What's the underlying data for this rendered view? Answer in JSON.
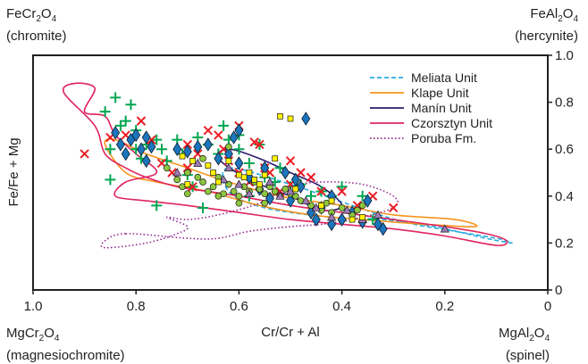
{
  "corners": {
    "top_left": {
      "formula": "FeCr",
      "sub1": "2",
      "rest": "O",
      "sub2": "4",
      "name": "(chromite)"
    },
    "top_right": {
      "formula": "FeAl",
      "sub1": "2",
      "rest": "O",
      "sub2": "4",
      "name": "(hercynite)"
    },
    "bottom_left": {
      "formula": "MgCr",
      "sub1": "2",
      "rest": "O",
      "sub2": "4",
      "name": "(magnesiochromite)"
    },
    "bottom_right": {
      "formula": "MgAl",
      "sub1": "2",
      "rest": "O",
      "sub2": "4",
      "name": "(spinel)"
    }
  },
  "chart_data": {
    "type": "scatter",
    "xlabel": "Cr/Cr + Al",
    "ylabel": "Fe/Fe + Mg",
    "xlim": [
      1.0,
      0.0
    ],
    "ylim": [
      0.0,
      1.0
    ],
    "x_reversed": true,
    "x_ticks": [
      "1.0",
      "0.8",
      "0.6",
      "0.4",
      "0.2",
      "0"
    ],
    "y_ticks": [
      "1.0",
      "0.8",
      "0.6",
      "0.4",
      "0.2",
      "0"
    ],
    "y_tick_side": "right",
    "legend_position": "top-right",
    "legend": [
      {
        "label": "Meliata Unit",
        "color": "#29abe2",
        "style": "dashed"
      },
      {
        "label": "Klape Unit",
        "color": "#f7941d",
        "style": "solid"
      },
      {
        "label": "Manín Unit",
        "color": "#2e1a6e",
        "style": "solid"
      },
      {
        "label": "Czorsztyn Unit",
        "color": "#e0245e",
        "style": "solid"
      },
      {
        "label": "Poruba Fm.",
        "color": "#92278f",
        "style": "dotted"
      }
    ],
    "fields": [
      {
        "name": "Meliata Unit",
        "color": "#29abe2",
        "style": "dashed",
        "points": [
          [
            0.62,
            0.52
          ],
          [
            0.5,
            0.45
          ],
          [
            0.38,
            0.36
          ],
          [
            0.28,
            0.29
          ],
          [
            0.18,
            0.25
          ],
          [
            0.1,
            0.22
          ],
          [
            0.07,
            0.2
          ],
          [
            0.12,
            0.22
          ],
          [
            0.22,
            0.27
          ],
          [
            0.32,
            0.3
          ],
          [
            0.42,
            0.31
          ],
          [
            0.55,
            0.35
          ],
          [
            0.62,
            0.42
          ]
        ]
      },
      {
        "name": "Klape Unit",
        "color": "#f7941d",
        "style": "solid",
        "points": [
          [
            0.86,
            0.62
          ],
          [
            0.82,
            0.5
          ],
          [
            0.76,
            0.46
          ],
          [
            0.66,
            0.42
          ],
          [
            0.56,
            0.36
          ],
          [
            0.46,
            0.32
          ],
          [
            0.36,
            0.3
          ],
          [
            0.24,
            0.28
          ],
          [
            0.14,
            0.27
          ],
          [
            0.18,
            0.3
          ],
          [
            0.3,
            0.32
          ],
          [
            0.4,
            0.36
          ],
          [
            0.52,
            0.4
          ],
          [
            0.62,
            0.46
          ],
          [
            0.7,
            0.52
          ],
          [
            0.78,
            0.58
          ],
          [
            0.84,
            0.64
          ]
        ]
      },
      {
        "name": "Manín Unit",
        "color": "#2e1a6e",
        "style": "solid",
        "points": [
          [
            0.64,
            0.56
          ],
          [
            0.58,
            0.47
          ],
          [
            0.5,
            0.4
          ],
          [
            0.44,
            0.34
          ],
          [
            0.4,
            0.36
          ],
          [
            0.44,
            0.44
          ],
          [
            0.5,
            0.5
          ],
          [
            0.56,
            0.56
          ],
          [
            0.62,
            0.6
          ]
        ]
      },
      {
        "name": "Czorsztyn Unit",
        "color": "#e0245e",
        "style": "solid",
        "points": [
          [
            0.9,
            0.76
          ],
          [
            0.88,
            0.86
          ],
          [
            0.92,
            0.88
          ],
          [
            0.94,
            0.84
          ],
          [
            0.88,
            0.7
          ],
          [
            0.86,
            0.58
          ],
          [
            0.82,
            0.52
          ],
          [
            0.78,
            0.48
          ],
          [
            0.72,
            0.44
          ],
          [
            0.66,
            0.42
          ],
          [
            0.6,
            0.4
          ],
          [
            0.5,
            0.36
          ],
          [
            0.4,
            0.33
          ],
          [
            0.3,
            0.3
          ],
          [
            0.2,
            0.27
          ],
          [
            0.12,
            0.24
          ],
          [
            0.08,
            0.21
          ],
          [
            0.1,
            0.19
          ],
          [
            0.2,
            0.23
          ],
          [
            0.3,
            0.26
          ],
          [
            0.4,
            0.28
          ],
          [
            0.5,
            0.3
          ],
          [
            0.6,
            0.33
          ],
          [
            0.7,
            0.36
          ],
          [
            0.78,
            0.38
          ],
          [
            0.84,
            0.4
          ],
          [
            0.82,
            0.46
          ],
          [
            0.76,
            0.5
          ],
          [
            0.8,
            0.58
          ],
          [
            0.84,
            0.66
          ],
          [
            0.86,
            0.74
          ]
        ]
      },
      {
        "name": "Poruba Fm.",
        "color": "#92278f",
        "style": "dotted",
        "points": [
          [
            0.82,
            0.24
          ],
          [
            0.7,
            0.22
          ],
          [
            0.64,
            0.22
          ],
          [
            0.58,
            0.25
          ],
          [
            0.5,
            0.27
          ],
          [
            0.44,
            0.28
          ],
          [
            0.38,
            0.3
          ],
          [
            0.3,
            0.35
          ],
          [
            0.3,
            0.4
          ],
          [
            0.36,
            0.45
          ],
          [
            0.44,
            0.46
          ],
          [
            0.5,
            0.44
          ],
          [
            0.56,
            0.37
          ],
          [
            0.64,
            0.32
          ],
          [
            0.7,
            0.3
          ],
          [
            0.74,
            0.31
          ],
          [
            0.7,
            0.27
          ],
          [
            0.72,
            0.24
          ],
          [
            0.78,
            0.2
          ],
          [
            0.86,
            0.18
          ],
          [
            0.86,
            0.21
          ]
        ]
      }
    ],
    "series": [
      {
        "marker": "plus",
        "color": "#00a651",
        "points": [
          [
            0.86,
            0.76
          ],
          [
            0.84,
            0.82
          ],
          [
            0.83,
            0.7
          ],
          [
            0.81,
            0.79
          ],
          [
            0.8,
            0.68
          ],
          [
            0.8,
            0.6
          ],
          [
            0.79,
            0.56
          ],
          [
            0.78,
            0.62
          ],
          [
            0.76,
            0.64
          ],
          [
            0.75,
            0.6
          ],
          [
            0.74,
            0.55
          ],
          [
            0.72,
            0.64
          ],
          [
            0.71,
            0.58
          ],
          [
            0.7,
            0.49
          ],
          [
            0.69,
            0.44
          ],
          [
            0.68,
            0.65
          ],
          [
            0.66,
            0.62
          ],
          [
            0.64,
            0.58
          ],
          [
            0.63,
            0.7
          ],
          [
            0.62,
            0.64
          ],
          [
            0.6,
            0.66
          ],
          [
            0.6,
            0.6
          ],
          [
            0.58,
            0.54
          ],
          [
            0.56,
            0.62
          ],
          [
            0.55,
            0.48
          ],
          [
            0.53,
            0.46
          ],
          [
            0.52,
            0.52
          ],
          [
            0.5,
            0.44
          ],
          [
            0.48,
            0.45
          ],
          [
            0.46,
            0.4
          ],
          [
            0.44,
            0.42
          ],
          [
            0.42,
            0.4
          ],
          [
            0.4,
            0.44
          ],
          [
            0.38,
            0.33
          ],
          [
            0.36,
            0.4
          ],
          [
            0.34,
            0.3
          ],
          [
            0.85,
            0.6
          ],
          [
            0.82,
            0.72
          ],
          [
            0.67,
            0.35
          ],
          [
            0.58,
            0.4
          ],
          [
            0.85,
            0.47
          ],
          [
            0.76,
            0.36
          ]
        ]
      },
      {
        "marker": "x",
        "color": "#ed1c24",
        "points": [
          [
            0.9,
            0.58
          ],
          [
            0.85,
            0.65
          ],
          [
            0.82,
            0.66
          ],
          [
            0.79,
            0.72
          ],
          [
            0.77,
            0.64
          ],
          [
            0.75,
            0.54
          ],
          [
            0.73,
            0.5
          ],
          [
            0.7,
            0.52
          ],
          [
            0.69,
            0.44
          ],
          [
            0.68,
            0.58
          ],
          [
            0.66,
            0.68
          ],
          [
            0.64,
            0.66
          ],
          [
            0.62,
            0.55
          ],
          [
            0.6,
            0.5
          ],
          [
            0.58,
            0.46
          ],
          [
            0.56,
            0.62
          ],
          [
            0.55,
            0.52
          ],
          [
            0.54,
            0.5
          ],
          [
            0.52,
            0.42
          ],
          [
            0.5,
            0.45
          ],
          [
            0.48,
            0.5
          ],
          [
            0.46,
            0.48
          ],
          [
            0.44,
            0.42
          ],
          [
            0.4,
            0.42
          ],
          [
            0.37,
            0.36
          ],
          [
            0.34,
            0.4
          ],
          [
            0.3,
            0.35
          ],
          [
            0.6,
            0.7
          ],
          [
            0.57,
            0.63
          ],
          [
            0.5,
            0.55
          ],
          [
            0.7,
            0.62
          ],
          [
            0.63,
            0.6
          ]
        ]
      },
      {
        "marker": "diamond",
        "color": "#1c75bc",
        "points": [
          [
            0.84,
            0.67
          ],
          [
            0.83,
            0.62
          ],
          [
            0.82,
            0.58
          ],
          [
            0.81,
            0.64
          ],
          [
            0.8,
            0.66
          ],
          [
            0.79,
            0.6
          ],
          [
            0.78,
            0.65
          ],
          [
            0.78,
            0.55
          ],
          [
            0.77,
            0.61
          ],
          [
            0.72,
            0.6
          ],
          [
            0.7,
            0.59
          ],
          [
            0.68,
            0.61
          ],
          [
            0.66,
            0.62
          ],
          [
            0.64,
            0.56
          ],
          [
            0.62,
            0.58
          ],
          [
            0.61,
            0.65
          ],
          [
            0.6,
            0.68
          ],
          [
            0.6,
            0.54
          ],
          [
            0.58,
            0.48
          ],
          [
            0.56,
            0.43
          ],
          [
            0.55,
            0.52
          ],
          [
            0.54,
            0.39
          ],
          [
            0.51,
            0.5
          ],
          [
            0.5,
            0.38
          ],
          [
            0.49,
            0.47
          ],
          [
            0.48,
            0.44
          ],
          [
            0.47,
            0.73
          ],
          [
            0.45,
            0.3
          ],
          [
            0.44,
            0.35
          ],
          [
            0.42,
            0.28
          ],
          [
            0.4,
            0.3
          ],
          [
            0.38,
            0.33
          ],
          [
            0.36,
            0.29
          ],
          [
            0.35,
            0.38
          ],
          [
            0.33,
            0.28
          ],
          [
            0.32,
            0.26
          ],
          [
            0.42,
            0.4
          ],
          [
            0.46,
            0.33
          ]
        ]
      },
      {
        "marker": "circle",
        "color": "#8dc63f",
        "points": [
          [
            0.74,
            0.52
          ],
          [
            0.72,
            0.47
          ],
          [
            0.71,
            0.44
          ],
          [
            0.7,
            0.5
          ],
          [
            0.68,
            0.48
          ],
          [
            0.67,
            0.46
          ],
          [
            0.66,
            0.42
          ],
          [
            0.65,
            0.44
          ],
          [
            0.64,
            0.48
          ],
          [
            0.63,
            0.41
          ],
          [
            0.62,
            0.45
          ],
          [
            0.61,
            0.42
          ],
          [
            0.6,
            0.4
          ],
          [
            0.59,
            0.44
          ],
          [
            0.58,
            0.42
          ],
          [
            0.57,
            0.46
          ],
          [
            0.56,
            0.43
          ],
          [
            0.55,
            0.41
          ],
          [
            0.54,
            0.44
          ],
          [
            0.53,
            0.42
          ],
          [
            0.52,
            0.4
          ],
          [
            0.51,
            0.43
          ],
          [
            0.5,
            0.41
          ],
          [
            0.49,
            0.4
          ],
          [
            0.48,
            0.38
          ],
          [
            0.46,
            0.36
          ],
          [
            0.44,
            0.34
          ],
          [
            0.43,
            0.37
          ],
          [
            0.42,
            0.33
          ],
          [
            0.4,
            0.35
          ],
          [
            0.38,
            0.32
          ],
          [
            0.37,
            0.34
          ],
          [
            0.36,
            0.36
          ],
          [
            0.55,
            0.37
          ],
          [
            0.6,
            0.37
          ],
          [
            0.64,
            0.4
          ],
          [
            0.7,
            0.41
          ],
          [
            0.67,
            0.56
          ],
          [
            0.62,
            0.61
          ]
        ]
      },
      {
        "marker": "triangle",
        "color": "#9e7bb5",
        "points": [
          [
            0.72,
            0.5
          ],
          [
            0.63,
            0.47
          ],
          [
            0.62,
            0.52
          ],
          [
            0.58,
            0.41
          ],
          [
            0.54,
            0.46
          ],
          [
            0.52,
            0.4
          ],
          [
            0.5,
            0.42
          ],
          [
            0.47,
            0.38
          ],
          [
            0.45,
            0.35
          ],
          [
            0.42,
            0.31
          ],
          [
            0.39,
            0.34
          ],
          [
            0.36,
            0.3
          ],
          [
            0.33,
            0.32
          ],
          [
            0.2,
            0.26
          ],
          [
            0.68,
            0.54
          ],
          [
            0.6,
            0.45
          ]
        ]
      },
      {
        "marker": "square",
        "color": "#fff200",
        "points": [
          [
            0.71,
            0.57
          ],
          [
            0.69,
            0.55
          ],
          [
            0.66,
            0.53
          ],
          [
            0.65,
            0.5
          ],
          [
            0.64,
            0.46
          ],
          [
            0.62,
            0.55
          ],
          [
            0.6,
            0.49
          ],
          [
            0.59,
            0.48
          ],
          [
            0.58,
            0.5
          ],
          [
            0.57,
            0.47
          ],
          [
            0.56,
            0.45
          ],
          [
            0.52,
            0.74
          ],
          [
            0.5,
            0.73
          ],
          [
            0.49,
            0.43
          ],
          [
            0.44,
            0.36
          ],
          [
            0.42,
            0.38
          ],
          [
            0.38,
            0.3
          ],
          [
            0.36,
            0.31
          ],
          [
            0.7,
            0.45
          ],
          [
            0.55,
            0.49
          ],
          [
            0.53,
            0.56
          ]
        ]
      }
    ]
  }
}
